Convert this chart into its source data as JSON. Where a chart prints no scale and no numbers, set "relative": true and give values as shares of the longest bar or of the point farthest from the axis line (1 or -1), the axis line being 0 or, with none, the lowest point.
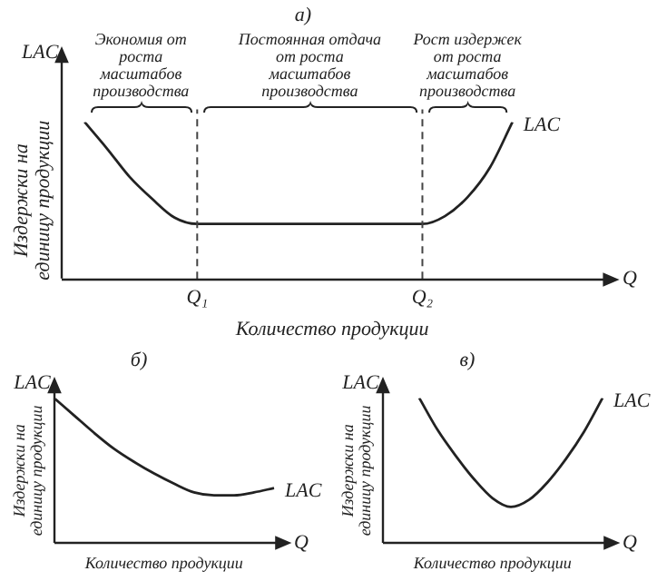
{
  "chart_data": [
    {
      "type": "line",
      "title": "а)",
      "xlabel": "Количество продукции",
      "ylabel": "Издержки на единицу продукции",
      "relative": true,
      "marker": "none",
      "categories": [
        null,
        null,
        null,
        null,
        null,
        null,
        "Q₁",
        null,
        null,
        null,
        null,
        null,
        null,
        null,
        null,
        null,
        "Q₂",
        null,
        null,
        null,
        null,
        null,
        null,
        null,
        null
      ],
      "series": [
        {
          "name": "LAC",
          "color": "#222222",
          "values": [
            null,
            1,
            0.83,
            0.65,
            0.51,
            0.39,
            0.35,
            0.35,
            0.35,
            0.35,
            0.35,
            0.35,
            0.35,
            0.35,
            0.35,
            0.35,
            0.35,
            0.4,
            0.52,
            0.71,
            1,
            null,
            null,
            null,
            null
          ]
        }
      ],
      "ref_lines": [
        {
          "axis": "x",
          "value": "Q₁",
          "line_style": "dashed",
          "color": "#444444"
        },
        {
          "axis": "x",
          "value": "Q₂",
          "line_style": "dashed",
          "color": "#444444"
        }
      ],
      "annotations": [
        "LAC",
        "Q",
        "Экономия от роста масштабов производства",
        "Постоянная отдача от роста масштабов производства",
        "Рост издержек от роста масштабов производства"
      ]
    },
    {
      "type": "line",
      "title": "б)",
      "xlabel": "Количество продукции",
      "ylabel": "Издержки на единицу продукции",
      "relative": true,
      "marker": "none",
      "categories": [
        null,
        null,
        null,
        null,
        null,
        null,
        null,
        null,
        null,
        null,
        null,
        null
      ],
      "series": [
        {
          "name": "LAC",
          "color": "#222222",
          "values": [
            1,
            0.88,
            0.76,
            0.65,
            0.56,
            0.48,
            0.41,
            0.35,
            0.33,
            0.33,
            0.35,
            0.38
          ]
        }
      ],
      "annotations": [
        "LAC",
        "Q"
      ]
    },
    {
      "type": "line",
      "title": "в)",
      "xlabel": "Количество продукции",
      "ylabel": "Издержки на единицу продукции",
      "relative": true,
      "marker": "none",
      "categories": [
        null,
        null,
        null,
        null,
        null,
        null,
        null,
        null,
        null,
        null,
        null,
        null,
        null
      ],
      "series": [
        {
          "name": "LAC",
          "color": "#222222",
          "values": [
            null,
            null,
            1,
            0.78,
            0.6,
            0.44,
            0.31,
            0.25,
            0.3,
            0.42,
            0.58,
            0.77,
            1
          ]
        }
      ],
      "annotations": [
        "LAC",
        "Q"
      ]
    }
  ]
}
